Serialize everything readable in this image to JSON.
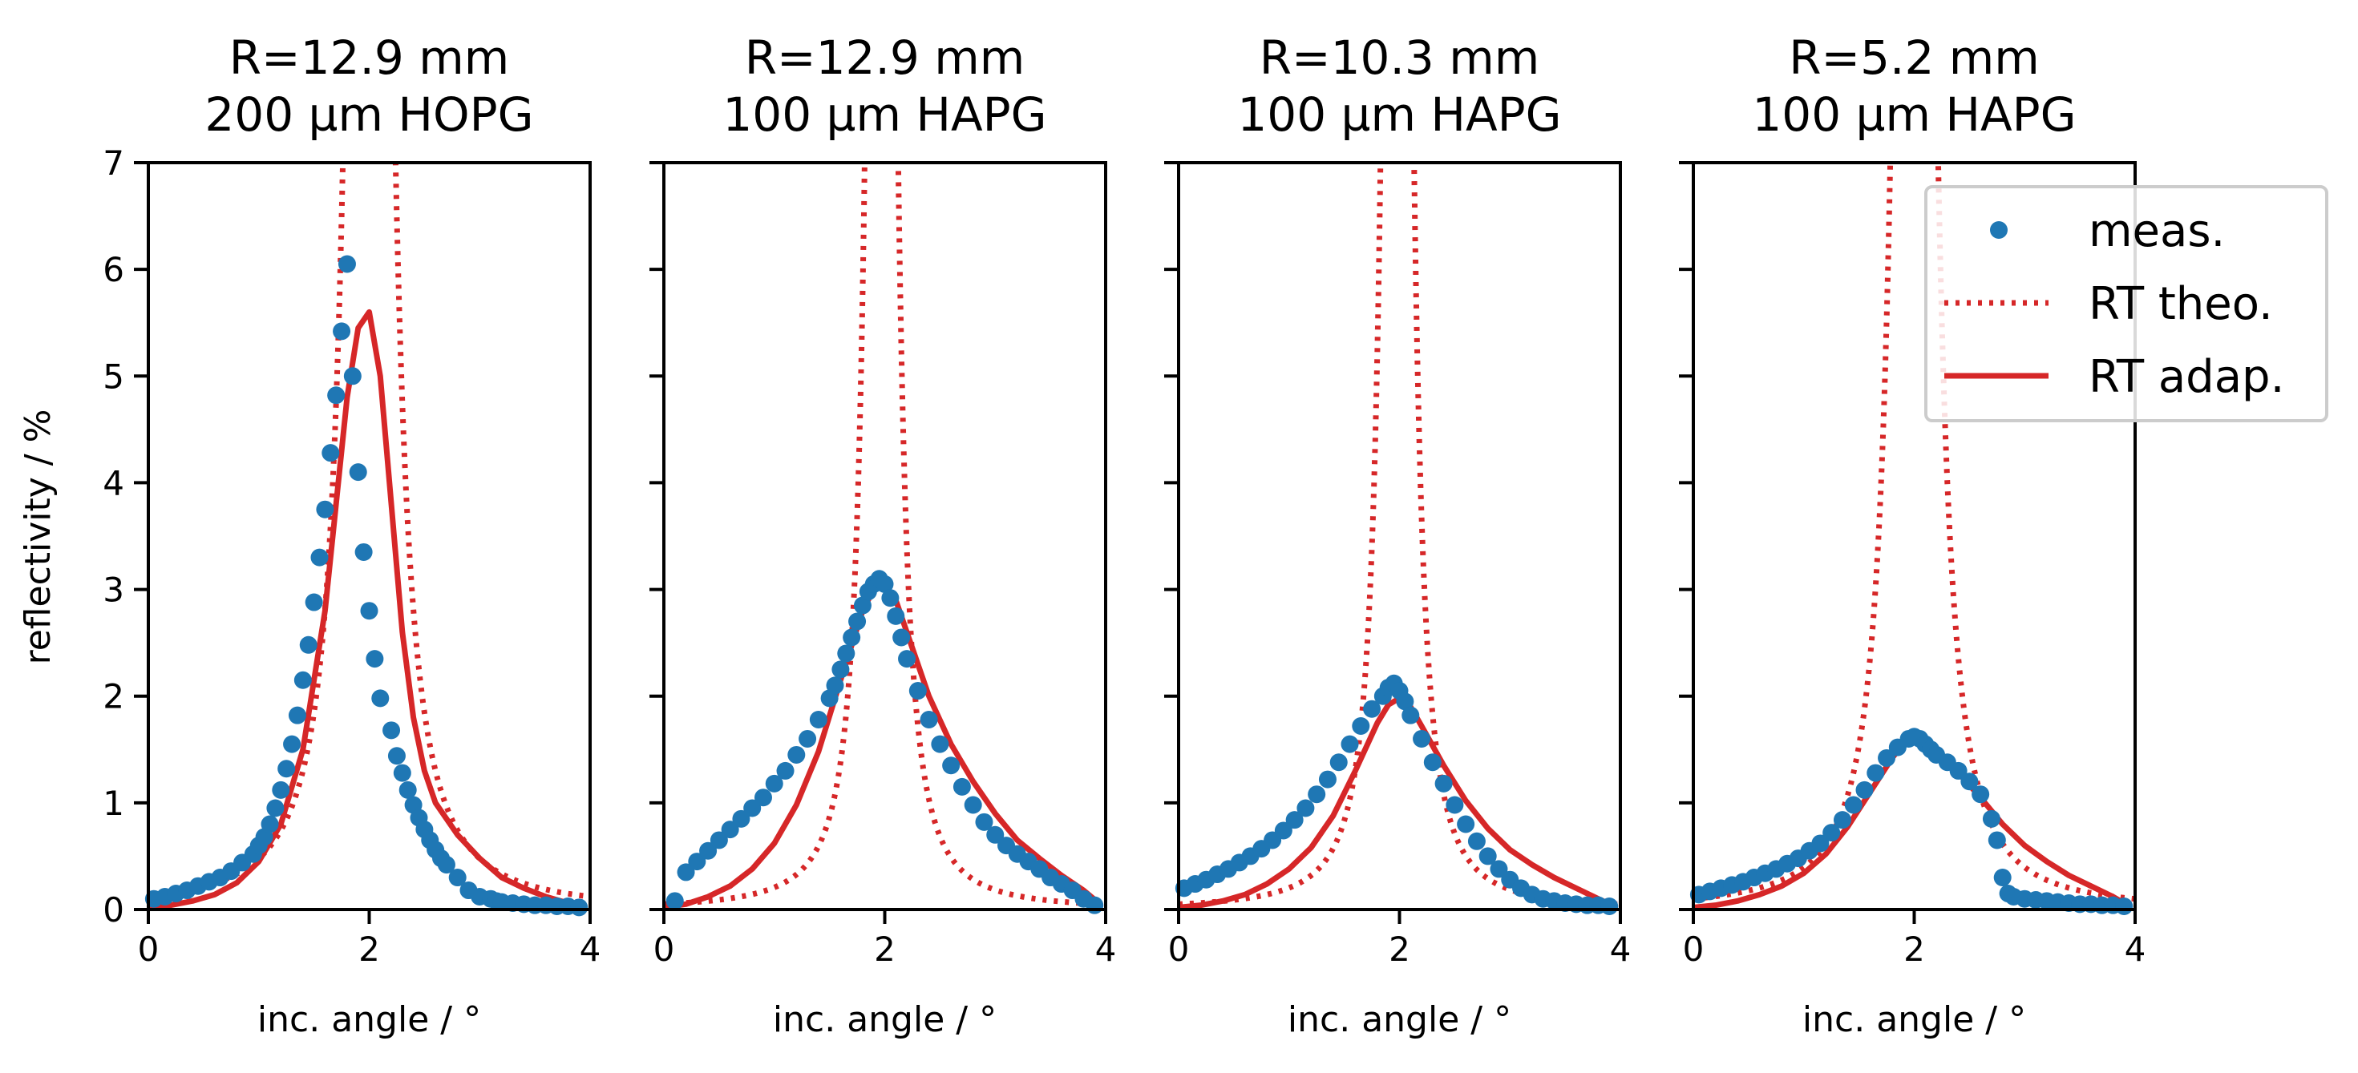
{
  "figure": {
    "ylabel": "reflectivity / %",
    "xlabel": "inc. angle / °",
    "xlim": [
      0,
      4
    ],
    "ylim": [
      0,
      7
    ],
    "xticks": [
      "0",
      "2",
      "4"
    ],
    "yticks": [
      "0",
      "1",
      "2",
      "3",
      "4",
      "5",
      "6",
      "7"
    ],
    "colors": {
      "meas": "#1f77b4",
      "rt": "#d62728"
    },
    "legend": {
      "placement": "upper-right (last panel)",
      "entries": [
        {
          "key": "meas",
          "label": "meas.",
          "style": "marker"
        },
        {
          "key": "rt_theo",
          "label": "RT theo.",
          "style": "dotted-line"
        },
        {
          "key": "rt_adap",
          "label": "RT adap.",
          "style": "solid-line"
        }
      ]
    }
  },
  "chart_data": [
    {
      "type": "scatter",
      "title_line1": "R=12.9 mm",
      "title_line2": "200 µm HOPG",
      "xlim": [
        0,
        4
      ],
      "ylim": [
        0,
        7
      ],
      "meas": {
        "x": [
          0.05,
          0.15,
          0.25,
          0.35,
          0.45,
          0.55,
          0.65,
          0.75,
          0.85,
          0.95,
          1.0,
          1.05,
          1.1,
          1.15,
          1.2,
          1.25,
          1.3,
          1.35,
          1.4,
          1.45,
          1.5,
          1.55,
          1.6,
          1.65,
          1.7,
          1.75,
          1.8,
          1.85,
          1.9,
          1.95,
          2.0,
          2.05,
          2.1,
          2.2,
          2.25,
          2.3,
          2.35,
          2.4,
          2.45,
          2.5,
          2.55,
          2.6,
          2.65,
          2.7,
          2.8,
          2.9,
          3.0,
          3.1,
          3.15,
          3.2,
          3.3,
          3.4,
          3.5,
          3.6,
          3.7,
          3.8,
          3.9
        ],
        "y": [
          0.1,
          0.12,
          0.15,
          0.18,
          0.22,
          0.26,
          0.3,
          0.36,
          0.44,
          0.52,
          0.6,
          0.68,
          0.8,
          0.95,
          1.12,
          1.32,
          1.55,
          1.82,
          2.15,
          2.48,
          2.88,
          3.3,
          3.75,
          4.28,
          4.82,
          5.42,
          6.05,
          5.0,
          4.1,
          3.35,
          2.8,
          2.35,
          1.98,
          1.68,
          1.44,
          1.28,
          1.12,
          0.98,
          0.86,
          0.75,
          0.65,
          0.56,
          0.48,
          0.42,
          0.3,
          0.18,
          0.12,
          0.1,
          0.08,
          0.07,
          0.06,
          0.05,
          0.04,
          0.04,
          0.03,
          0.03,
          0.02
        ],
        "x_extra": []
      },
      "rt_theo": {
        "x0": 2.0,
        "width": 0.22,
        "peak": 40
      },
      "rt_adap": {
        "x": [
          0,
          0.2,
          0.4,
          0.6,
          0.8,
          1.0,
          1.2,
          1.4,
          1.6,
          1.7,
          1.8,
          1.9,
          2.0,
          2.1,
          2.2,
          2.3,
          2.4,
          2.5,
          2.6,
          2.8,
          3.0,
          3.2,
          3.4,
          3.6,
          3.8,
          3.95
        ],
        "y": [
          0.02,
          0.04,
          0.08,
          0.14,
          0.25,
          0.45,
          0.8,
          1.5,
          2.8,
          3.8,
          4.8,
          5.45,
          5.6,
          5.0,
          3.8,
          2.6,
          1.8,
          1.3,
          1.0,
          0.7,
          0.48,
          0.3,
          0.2,
          0.12,
          0.06,
          0.02
        ]
      }
    },
    {
      "type": "scatter",
      "title_line1": "R=12.9 mm",
      "title_line2": "100 µm HAPG",
      "xlim": [
        0,
        4
      ],
      "ylim": [
        0,
        7
      ],
      "meas": {
        "x": [
          0.1,
          0.2,
          0.3,
          0.4,
          0.5,
          0.6,
          0.7,
          0.8,
          0.9,
          1.0,
          1.1,
          1.2,
          1.3,
          1.4,
          1.5,
          1.55,
          1.6,
          1.65,
          1.7,
          1.75,
          1.8,
          1.85,
          1.9,
          1.95,
          2.0,
          2.05,
          2.1,
          2.15,
          2.2,
          2.3,
          2.4,
          2.5,
          2.6,
          2.7,
          2.8,
          2.9,
          3.0,
          3.1,
          3.2,
          3.3,
          3.4,
          3.5,
          3.6,
          3.7,
          3.8,
          3.9
        ],
        "y": [
          0.08,
          0.35,
          0.45,
          0.55,
          0.65,
          0.75,
          0.85,
          0.95,
          1.05,
          1.18,
          1.3,
          1.45,
          1.6,
          1.78,
          1.98,
          2.1,
          2.25,
          2.4,
          2.55,
          2.7,
          2.85,
          2.98,
          3.05,
          3.1,
          3.05,
          2.92,
          2.75,
          2.55,
          2.35,
          2.05,
          1.78,
          1.55,
          1.35,
          1.15,
          0.98,
          0.82,
          0.7,
          0.6,
          0.52,
          0.45,
          0.38,
          0.3,
          0.24,
          0.18,
          0.1,
          0.04
        ],
        "x_extra": []
      },
      "rt_theo": {
        "x0": 1.97,
        "width": 0.14,
        "peak": 40
      },
      "rt_adap": {
        "x": [
          0,
          0.2,
          0.4,
          0.6,
          0.8,
          1.0,
          1.2,
          1.4,
          1.6,
          1.8,
          1.9,
          2.0,
          2.1,
          2.2,
          2.4,
          2.6,
          2.8,
          3.0,
          3.2,
          3.4,
          3.6,
          3.8,
          3.95
        ],
        "y": [
          0.02,
          0.05,
          0.12,
          0.22,
          0.38,
          0.62,
          0.98,
          1.48,
          2.15,
          2.8,
          3.0,
          3.05,
          2.9,
          2.6,
          2.0,
          1.55,
          1.2,
          0.9,
          0.65,
          0.48,
          0.32,
          0.18,
          0.05
        ]
      }
    },
    {
      "type": "scatter",
      "title_line1": "R=10.3 mm",
      "title_line2": "100 µm HAPG",
      "xlim": [
        0,
        4
      ],
      "ylim": [
        0,
        7
      ],
      "meas": {
        "x": [
          0.05,
          0.15,
          0.25,
          0.35,
          0.45,
          0.55,
          0.65,
          0.75,
          0.85,
          0.95,
          1.05,
          1.15,
          1.25,
          1.35,
          1.45,
          1.55,
          1.65,
          1.75,
          1.85,
          1.9,
          1.95,
          2.0,
          2.05,
          2.1,
          2.2,
          2.3,
          2.4,
          2.5,
          2.6,
          2.7,
          2.8,
          2.9,
          3.0,
          3.1,
          3.2,
          3.3,
          3.4,
          3.5,
          3.6,
          3.7,
          3.8,
          3.9
        ],
        "y": [
          0.2,
          0.24,
          0.28,
          0.33,
          0.38,
          0.44,
          0.5,
          0.57,
          0.65,
          0.74,
          0.84,
          0.95,
          1.08,
          1.22,
          1.38,
          1.55,
          1.72,
          1.88,
          2.0,
          2.08,
          2.12,
          2.05,
          1.95,
          1.82,
          1.6,
          1.38,
          1.18,
          0.98,
          0.8,
          0.64,
          0.5,
          0.38,
          0.28,
          0.2,
          0.14,
          0.1,
          0.08,
          0.06,
          0.05,
          0.04,
          0.04,
          0.03
        ],
        "x_extra": []
      },
      "rt_theo": {
        "x0": 1.98,
        "width": 0.14,
        "peak": 40
      },
      "rt_adap": {
        "x": [
          0,
          0.2,
          0.4,
          0.6,
          0.8,
          1.0,
          1.2,
          1.4,
          1.6,
          1.8,
          1.9,
          2.0,
          2.1,
          2.2,
          2.4,
          2.6,
          2.8,
          3.0,
          3.2,
          3.4,
          3.6,
          3.8,
          3.95
        ],
        "y": [
          0.02,
          0.04,
          0.08,
          0.14,
          0.24,
          0.38,
          0.58,
          0.88,
          1.3,
          1.75,
          1.92,
          1.98,
          1.9,
          1.72,
          1.35,
          1.02,
          0.76,
          0.56,
          0.42,
          0.3,
          0.2,
          0.1,
          0.03
        ]
      }
    },
    {
      "type": "scatter",
      "title_line1": "R=5.2 mm",
      "title_line2": "100 µm HAPG",
      "xlim": [
        0,
        4
      ],
      "ylim": [
        0,
        7
      ],
      "meas": {
        "x": [
          0.05,
          0.15,
          0.25,
          0.35,
          0.45,
          0.55,
          0.65,
          0.75,
          0.85,
          0.95,
          1.05,
          1.15,
          1.25,
          1.35,
          1.45,
          1.55,
          1.65,
          1.75,
          1.85,
          1.95,
          2.0,
          2.05,
          2.1,
          2.15,
          2.2,
          2.3,
          2.4,
          2.5,
          2.6,
          2.7,
          2.75,
          2.8,
          2.85,
          2.9,
          3.0,
          3.1,
          3.2,
          3.3,
          3.4,
          3.5,
          3.6,
          3.7,
          3.8,
          3.9
        ],
        "y": [
          0.14,
          0.17,
          0.2,
          0.23,
          0.26,
          0.3,
          0.34,
          0.38,
          0.43,
          0.48,
          0.55,
          0.62,
          0.72,
          0.84,
          0.98,
          1.12,
          1.28,
          1.42,
          1.52,
          1.6,
          1.62,
          1.6,
          1.55,
          1.5,
          1.45,
          1.38,
          1.3,
          1.2,
          1.08,
          0.85,
          0.65,
          0.3,
          0.15,
          0.12,
          0.1,
          0.09,
          0.08,
          0.07,
          0.06,
          0.05,
          0.05,
          0.04,
          0.04,
          0.03
        ],
        "x_extra": []
      },
      "rt_theo": {
        "x0": 2.0,
        "width": 0.2,
        "peak": 40
      },
      "rt_adap": {
        "x": [
          0,
          0.2,
          0.4,
          0.6,
          0.8,
          1.0,
          1.2,
          1.4,
          1.6,
          1.8,
          1.9,
          2.0,
          2.1,
          2.2,
          2.4,
          2.6,
          2.8,
          3.0,
          3.2,
          3.4,
          3.6,
          3.8,
          3.95
        ],
        "y": [
          0.02,
          0.04,
          0.08,
          0.14,
          0.22,
          0.34,
          0.52,
          0.78,
          1.1,
          1.42,
          1.55,
          1.6,
          1.58,
          1.5,
          1.28,
          1.05,
          0.8,
          0.6,
          0.45,
          0.32,
          0.22,
          0.12,
          0.03
        ]
      }
    }
  ]
}
